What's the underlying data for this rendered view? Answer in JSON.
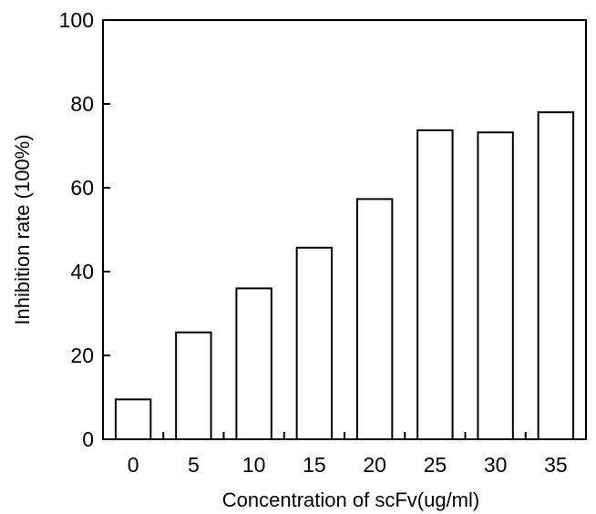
{
  "chart_data": {
    "type": "bar",
    "title": "",
    "xlabel": "Concentration of scFv(ug/ml)",
    "ylabel": "Inhibition rate (100%)",
    "categories": [
      "0",
      "5",
      "10",
      "15",
      "20",
      "25",
      "30",
      "35"
    ],
    "values": [
      9.5,
      25.5,
      36,
      45.7,
      57.3,
      73.7,
      73.2,
      78
    ],
    "ylim": [
      0,
      100
    ],
    "yticks": [
      "0",
      "20",
      "40",
      "60",
      "80",
      "100"
    ],
    "grid": false,
    "bar_fill": "#ffffff",
    "bar_stroke": "#000000"
  }
}
